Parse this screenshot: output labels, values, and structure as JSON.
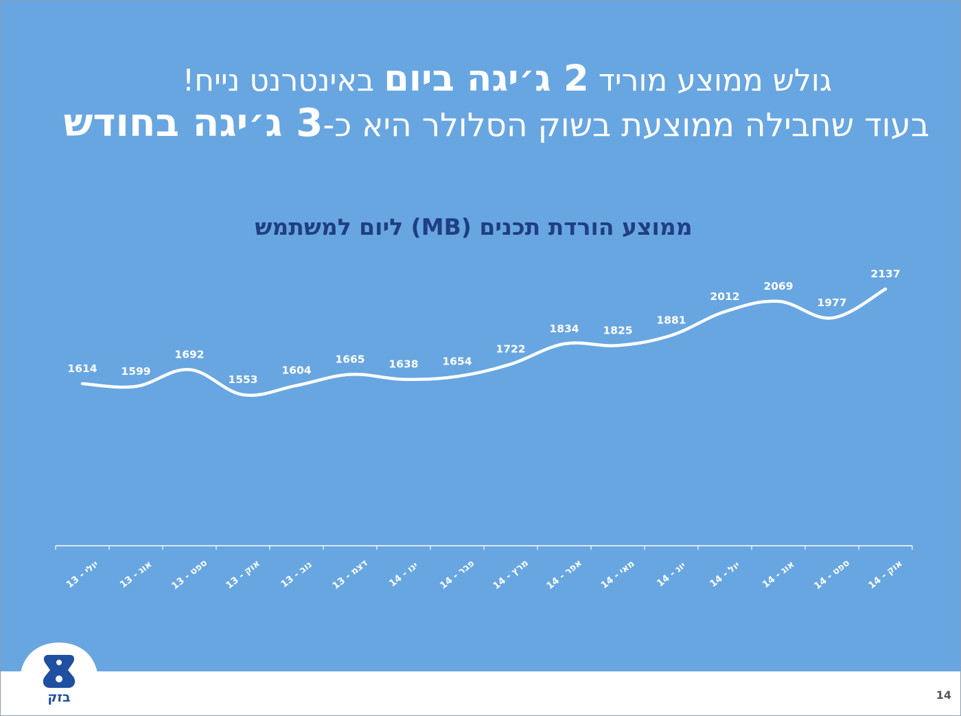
{
  "headline": {
    "line1_pre": "גולש ממוצע מוריד",
    "line1_bold": "2 ג׳יגה ביום",
    "line1_post": "באינטרנט נייח!",
    "line2_pre": "בעוד שחבילה ממוצעת בשוק הסלולר היא כ-",
    "line2_bold": "3 ג׳יגה בחודש"
  },
  "brand": {
    "logo_name": "בזק",
    "logo_color": "#1f4fa0"
  },
  "page_number": "14",
  "colors": {
    "background": "#68a6e1",
    "line": "#ffffff",
    "title": "#1f3f82"
  },
  "chart_data": {
    "type": "line",
    "title": "ממוצע הורדת תכנים (MB) ליום למשתמש",
    "categories": [
      "יולי - 13",
      "אוג - 13",
      "ספט - 13",
      "אוק - 13",
      "נוב - 13",
      "דצמ - 13",
      "ינו - 14",
      "פבר - 14",
      "מרץ - 14",
      "אפר - 14",
      "מאי - 14",
      "יונ - 14",
      "יול - 14",
      "אוג - 14",
      "ספט - 14",
      "אוק - 14"
    ],
    "series": [
      {
        "values": [
          1614,
          1599,
          1692,
          1553,
          1604,
          1665,
          1638,
          1654,
          1722,
          1834,
          1825,
          1881,
          2012,
          2069,
          1977,
          2137
        ]
      }
    ],
    "data_labels": [
      "1614",
      "1599",
      "1692",
      "1553",
      "1604",
      "1665",
      "1638",
      "1654",
      "1722",
      "1834",
      "1825",
      "1881",
      "2012",
      "2069",
      "1977",
      "2137"
    ],
    "ylim": [
      0,
      2300
    ],
    "grid": false,
    "legend": "none",
    "xlabel": "",
    "ylabel": ""
  }
}
